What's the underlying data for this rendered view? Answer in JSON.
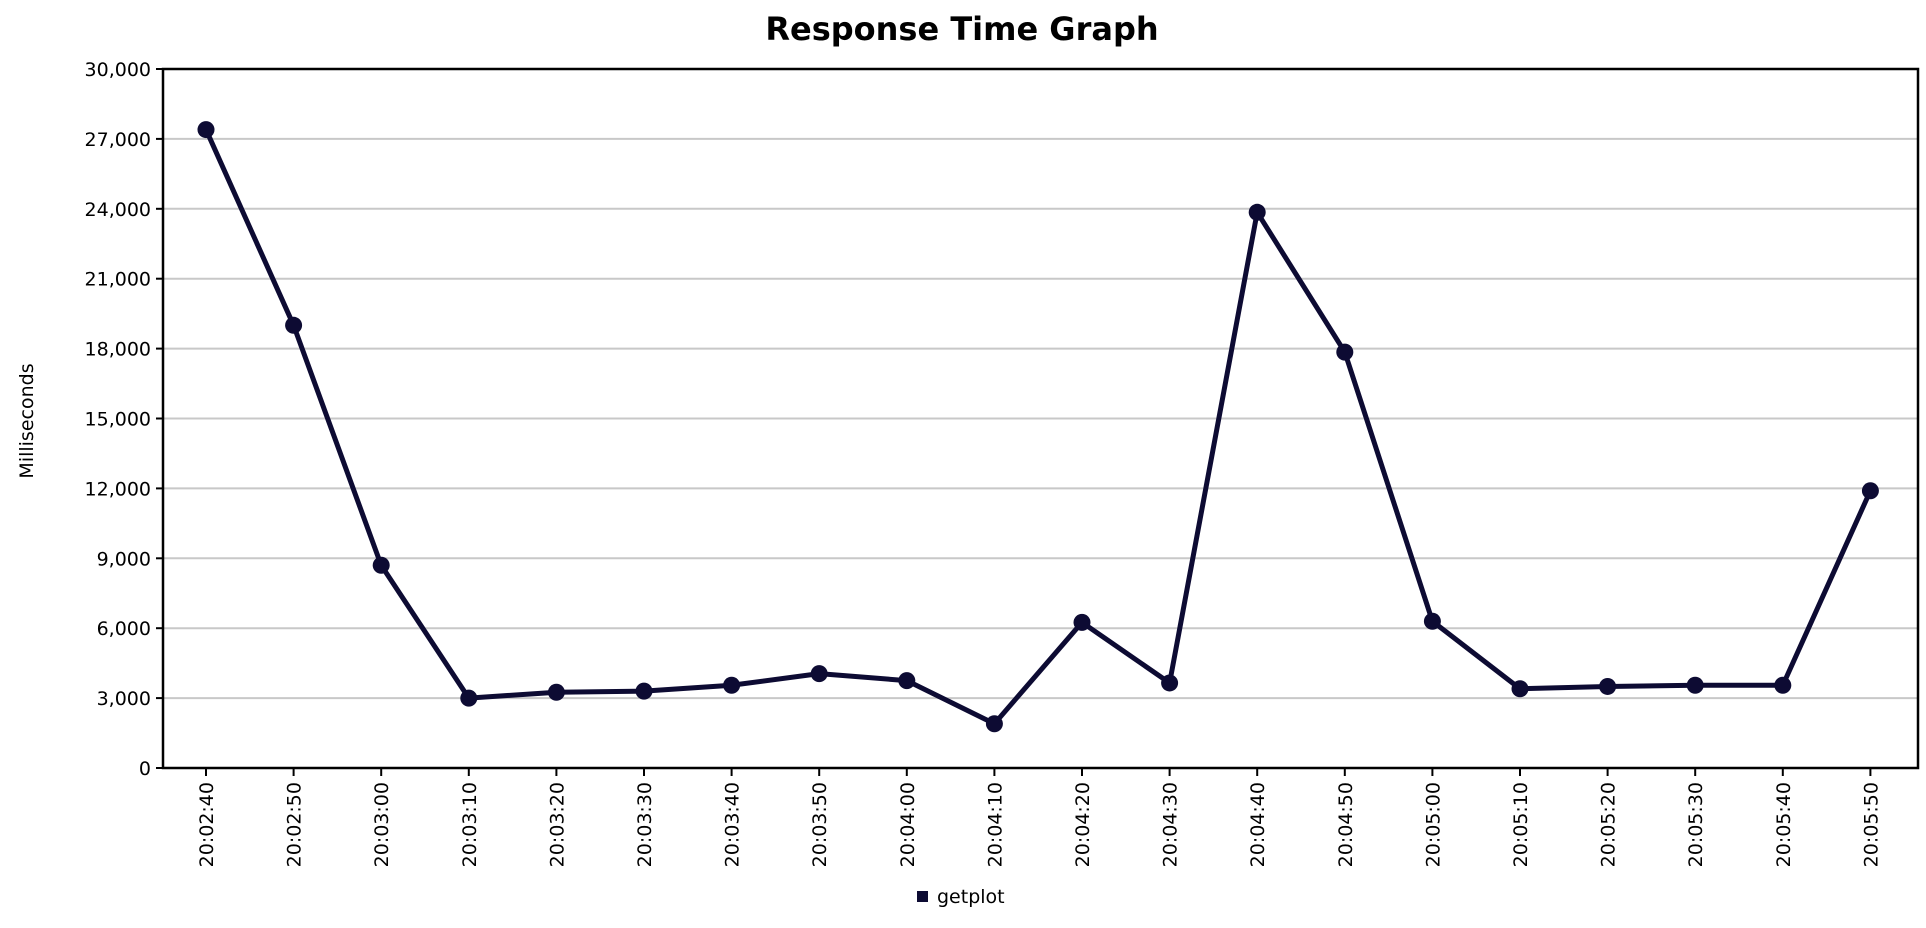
{
  "chart_data": {
    "type": "line",
    "title": "Response Time Graph",
    "xlabel": "",
    "ylabel": "Milliseconds",
    "ylim": [
      0,
      30000
    ],
    "yticks": [
      0,
      3000,
      6000,
      9000,
      12000,
      15000,
      18000,
      21000,
      24000,
      27000,
      30000
    ],
    "ytick_labels": [
      "0",
      "3,000",
      "6,000",
      "9,000",
      "12,000",
      "15,000",
      "18,000",
      "21,000",
      "24,000",
      "27,000",
      "30,000"
    ],
    "categories": [
      "20:02:40",
      "20:02:50",
      "20:03:00",
      "20:03:10",
      "20:03:20",
      "20:03:30",
      "20:03:40",
      "20:03:50",
      "20:04:00",
      "20:04:10",
      "20:04:20",
      "20:04:30",
      "20:04:40",
      "20:04:50",
      "20:05:00",
      "20:05:10",
      "20:05:20",
      "20:05:30",
      "20:05:40",
      "20:05:50"
    ],
    "series": [
      {
        "name": "getplot",
        "color": "#0d0b33",
        "values": [
          27400,
          19000,
          8700,
          3000,
          3250,
          3300,
          3550,
          4050,
          3750,
          1900,
          6250,
          3650,
          23850,
          17850,
          6300,
          3400,
          3500,
          3550,
          3550,
          11900
        ]
      }
    ],
    "grid": true,
    "legend_position": "bottom-center"
  }
}
